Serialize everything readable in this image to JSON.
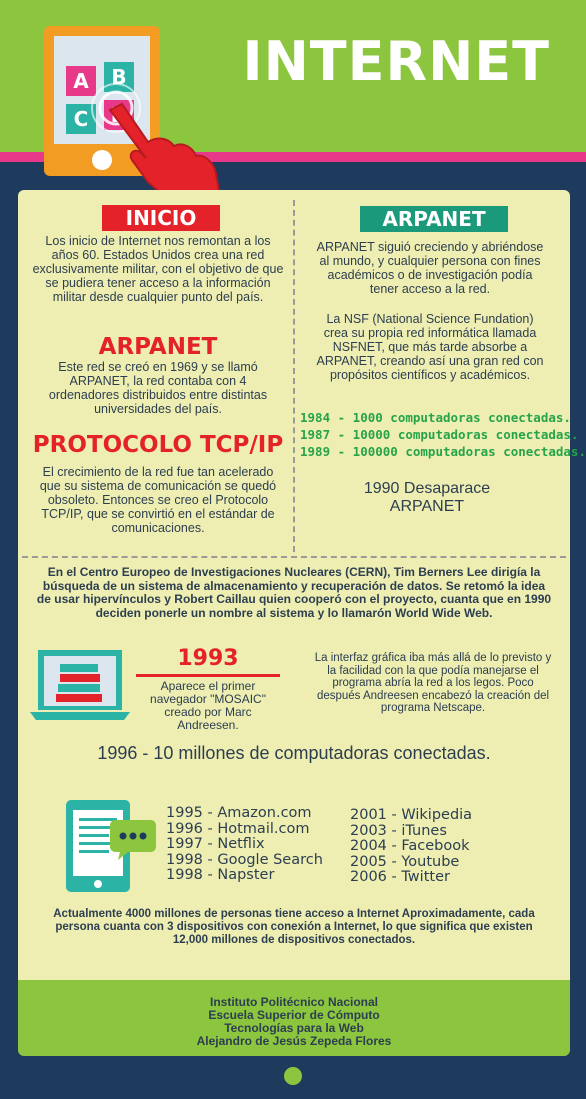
{
  "header": {
    "title": "INTERNET",
    "tablet_letters": [
      "A",
      "B",
      "C",
      "D"
    ],
    "colors": {
      "green": "#8cc63f",
      "pink": "#e8388a",
      "navy": "#1e3a5c",
      "orange": "#f39c23",
      "red": "#e32229",
      "teal": "#1a9a7a"
    }
  },
  "inicio": {
    "label": "INICIO",
    "text": "Los inicio de Internet nos remontan a los años 60. Estados Unidos crea una red exclusivamente militar, con el objetivo de que se pudiera tener acceso a la información militar desde cualquier punto del país."
  },
  "arpanet_left": {
    "heading": "ARPANET",
    "text": "Este red se creó en 1969 y se llamó ARPANET, la red contaba con 4 ordenadores distribuidos entre distintas universidades del país."
  },
  "protocolo": {
    "heading": "PROTOCOLO TCP/IP",
    "text": "El crecimiento de la red fue tan acelerado que su sistema de comunicación se quedó obsoleto. Entonces se creo el Protocolo TCP/IP, que se convirtió en el estándar de comunicaciones."
  },
  "arpanet_right": {
    "label": "ARPANET",
    "text1": "ARPANET siguió creciendo y abriéndose al mundo, y cualquier persona con fines académicos o de investigación podía tener acceso a la red.",
    "text2": "La NSF (National Science Fundation) crea su propia red informática llamada NSFNET, que más tarde absorbe a ARPANET, creando así una gran red con propósitos científicos y académicos.",
    "milestones": [
      "1984 - 1000 computadoras conectadas.",
      "1987 - 10000 computadoras conectadas.",
      "1989 - 100000 computadoras conectadas."
    ],
    "end": "1990 Desaparace ARPANET"
  },
  "cern": {
    "text": "En el Centro Europeo de Investigaciones Nucleares (CERN), Tim Berners Lee dirigía la búsqueda de un sistema de almacenamiento y recuperación de datos. Se retomó la idea de usar hipervínculos y Robert Caillau quien cooperó con el proyecto, cuanta que en 1990 deciden ponerle un nombre al sistema y lo llamarón World Wide Web."
  },
  "mosaic": {
    "year": "1993",
    "text": "Aparece el primer navegador \"MOSAIC\" creado por Marc Andreesen.",
    "side_text": "La interfaz gráfica iba más allá de lo previsto y la facilidad con la que podía manejarse el programa abría la red a los legos. Poco después Andreesen encabezó la creación del programa Netscape."
  },
  "stat_1996": "1996 - 10 millones de computadoras conectadas.",
  "timeline_left": [
    "1995 - Amazon.com",
    "1996 - Hotmail.com",
    "1997 - Netflix",
    "1998 - Google Search",
    "1998 - Napster"
  ],
  "timeline_right": [
    "2001 - Wikipedia",
    "2003 - iTunes",
    "2004 - Facebook",
    "2005 - Youtube",
    "2006 - Twitter"
  ],
  "actual": {
    "text": "Actualmente 4000 millones de personas tiene acceso a Internet Aproximadamente, cada persona cuanta con 3 dispositivos con conexión a Internet, lo que significa que existen 12,000 millones de dispositivos conectados."
  },
  "footer": {
    "lines": [
      "Instituto Politécnico Nacional",
      "Escuela Superior de Cómputo",
      "Tecnologías para la Web",
      "Alejandro de Jesús Zepeda Flores"
    ]
  }
}
